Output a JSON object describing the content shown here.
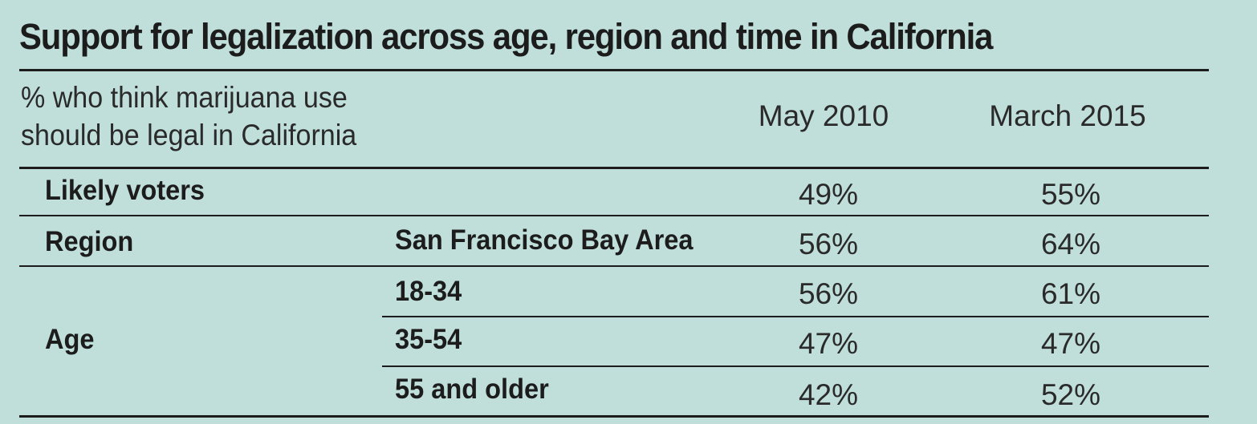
{
  "chart_data": {
    "type": "table",
    "title": "Support for legalization across age, region and time in California",
    "subtitle": "% who think marijuana use should be legal in California",
    "subtitle_lines": [
      "% who think marijuana use",
      "should be legal in California"
    ],
    "columns": [
      "May 2010",
      "March 2015"
    ],
    "rows": [
      {
        "group": "Likely voters",
        "label": "",
        "values": [
          "49%",
          "55%"
        ]
      },
      {
        "group": "Region",
        "label": "San Francisco Bay Area",
        "values": [
          "56%",
          "64%"
        ]
      },
      {
        "group": "Age",
        "label": "18-34",
        "values": [
          "56%",
          "61%"
        ]
      },
      {
        "group": "",
        "label": "35-54",
        "values": [
          "47%",
          "47%"
        ]
      },
      {
        "group": "",
        "label": "55 and older",
        "values": [
          "42%",
          "52%"
        ]
      }
    ],
    "series": [
      {
        "name": "May 2010",
        "values": [
          49,
          56,
          56,
          47,
          42
        ]
      },
      {
        "name": "March 2015",
        "values": [
          55,
          64,
          61,
          47,
          52
        ]
      }
    ],
    "categories": [
      "Likely voters",
      "San Francisco Bay Area",
      "18-34",
      "35-54",
      "55 and older"
    ],
    "grid": true
  }
}
